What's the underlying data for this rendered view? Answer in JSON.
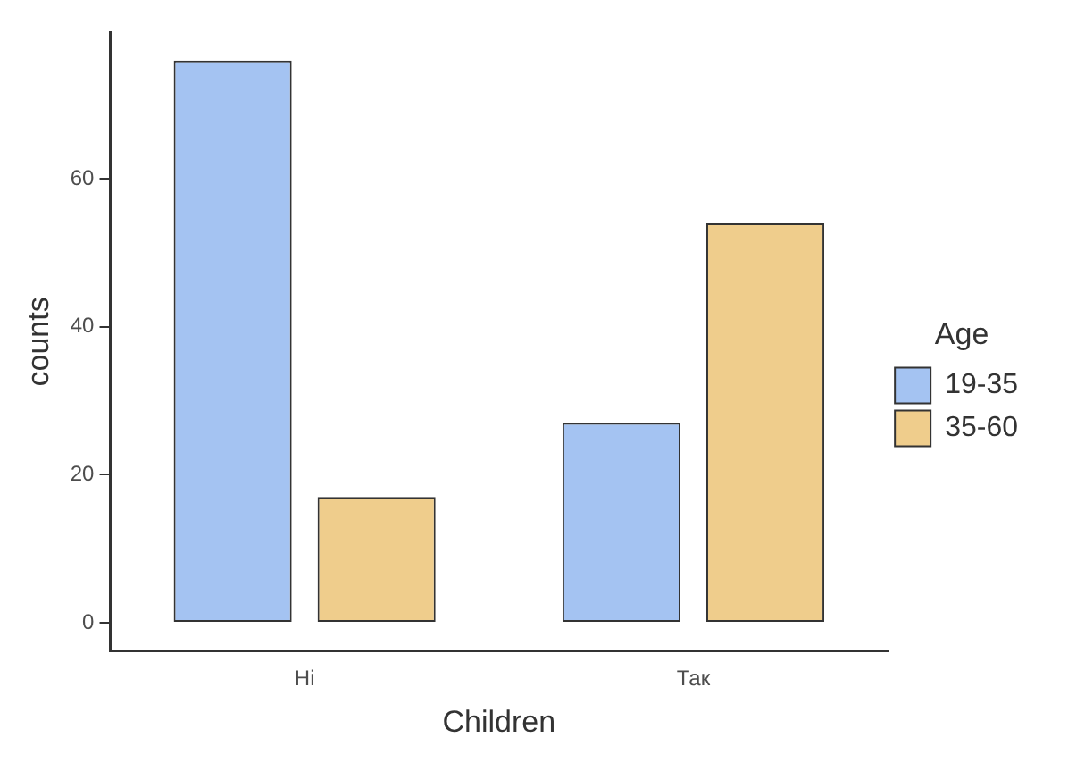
{
  "chart_data": {
    "type": "bar",
    "xlabel": "Children",
    "ylabel": "counts",
    "legend_title": "Age",
    "categories": [
      "Ні",
      "Так"
    ],
    "series": [
      {
        "name": "19-35",
        "color": "#a4c3f2",
        "values": [
          76,
          27
        ]
      },
      {
        "name": "35-60",
        "color": "#efcd8c",
        "values": [
          17,
          54
        ]
      }
    ],
    "ylim": [
      -3.8,
      79.8
    ],
    "yticks": [
      0,
      20,
      40,
      60
    ],
    "grid": false,
    "legend": "right"
  }
}
